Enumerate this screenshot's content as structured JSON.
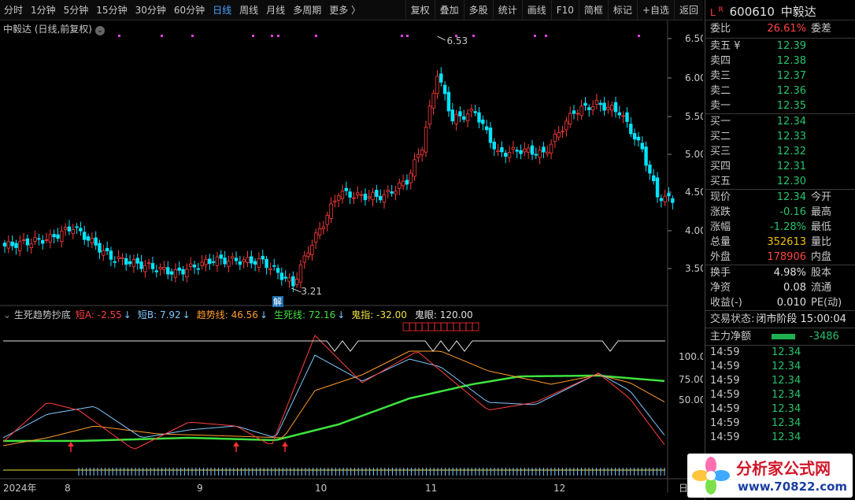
{
  "toolbar": {
    "periods": [
      "分时",
      "1分钟",
      "5分钟",
      "15分钟",
      "30分钟",
      "60分钟",
      "日线",
      "周线",
      "月线",
      "多周期",
      "更多 〉"
    ],
    "active_period": "日线",
    "right_buttons": [
      "复权",
      "叠加",
      "多股",
      "统计",
      "画线",
      "F10",
      "简框",
      "标记",
      "+自选",
      "返回"
    ]
  },
  "chart": {
    "title": "中毅达 (日线,前复权)",
    "high_label": "6.53",
    "low_label": "3.21",
    "jie_label": "解",
    "price_ticks": [
      "6.50",
      "6.00",
      "5.50",
      "5.00",
      "4.50",
      "4.00",
      "3.50"
    ],
    "ind_ticks": [
      "100.0",
      "75.00",
      "50.00"
    ],
    "x_labels": [
      "2024年",
      "8",
      "9",
      "10",
      "11",
      "12",
      "日线"
    ]
  },
  "indicator": {
    "name": "生死趋势抄底",
    "items": [
      {
        "label": "短A: -2.55",
        "arrow": "↓",
        "color": "#ff4040"
      },
      {
        "label": "短B: 7.92",
        "arrow": "↓",
        "color": "#7ec8ff"
      },
      {
        "label": "趋势线: 46.56",
        "arrow": "↓",
        "color": "#ff9c2a"
      },
      {
        "label": "生死线: 72.16",
        "arrow": "↓",
        "color": "#3ee23e"
      },
      {
        "label": "鬼指: -32.00",
        "arrow": "",
        "color": "#f0e040"
      },
      {
        "label": "鬼眼: 120.00",
        "arrow": "",
        "color": "#e0e0e0"
      }
    ]
  },
  "quote": {
    "code": "600610",
    "name": "中毅达",
    "flag_l": "L",
    "flag_r": "R",
    "weibi_label": "委比",
    "weibi": "26.61%",
    "weicha_label": "委差",
    "asks": [
      {
        "label": "卖五 ¥",
        "price": "12.39"
      },
      {
        "label": "卖四",
        "price": "12.38"
      },
      {
        "label": "卖三",
        "price": "12.37"
      },
      {
        "label": "卖二",
        "price": "12.36"
      },
      {
        "label": "卖一",
        "price": "12.35"
      }
    ],
    "bids": [
      {
        "label": "买一",
        "price": "12.34"
      },
      {
        "label": "买二",
        "price": "12.33"
      },
      {
        "label": "买三",
        "price": "12.32"
      },
      {
        "label": "买四",
        "price": "12.31"
      },
      {
        "label": "买五",
        "price": "12.30"
      }
    ],
    "stats": [
      {
        "l": "现价",
        "v": "12.34",
        "vc": "g",
        "l2": "今开"
      },
      {
        "l": "涨跌",
        "v": "-0.16",
        "vc": "g",
        "l2": "最高"
      },
      {
        "l": "涨幅",
        "v": "-1.28%",
        "vc": "g",
        "l2": "最低"
      },
      {
        "l": "总量",
        "v": "352613",
        "vc": "y",
        "l2": "量比"
      },
      {
        "l": "外盘",
        "v": "178906",
        "vc": "r",
        "l2": "内盘"
      }
    ],
    "stats2": [
      {
        "l": "换手",
        "v": "4.98%",
        "vc": "w",
        "l2": "股本"
      },
      {
        "l": "净资",
        "v": "0.08",
        "vc": "w",
        "l2": "流通"
      },
      {
        "l": "收益(-)",
        "v": "0.010",
        "vc": "w",
        "l2": "PE(动)"
      }
    ],
    "trade_state_label": "交易状态:",
    "trade_state": "闭市阶段 15:00:04",
    "main_flow_label": "主力净额",
    "main_flow": "-3486",
    "ticks": [
      {
        "t": "14:59",
        "p": "12.34"
      },
      {
        "t": "14:59",
        "p": "12.34"
      },
      {
        "t": "14:59",
        "p": "12.34"
      },
      {
        "t": "14:59",
        "p": "12.34"
      },
      {
        "t": "14:59",
        "p": "12.34"
      },
      {
        "t": "14:59",
        "p": "12.34"
      },
      {
        "t": "14:59",
        "p": "12.34"
      }
    ]
  },
  "watermark": {
    "title": "分析家公式网",
    "url": "www.70822.com"
  },
  "colors": {
    "up": "#ff3b3b",
    "down": "#00e5ff",
    "panel_bg": "#000000"
  }
}
